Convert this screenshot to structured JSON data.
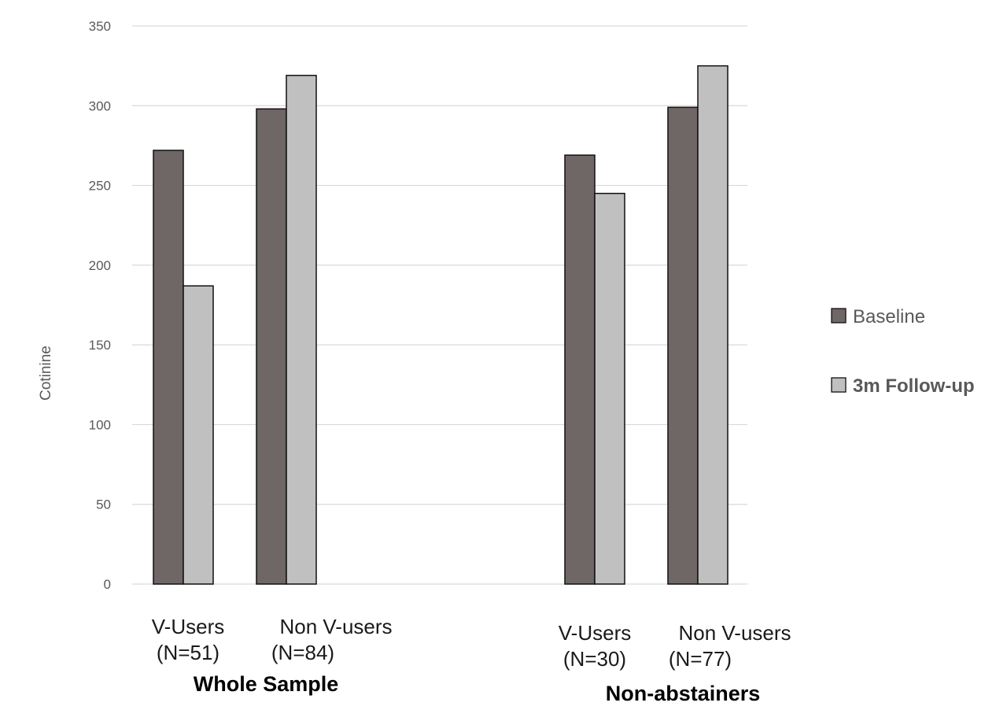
{
  "chart_data": {
    "type": "bar",
    "ylabel": "Cotinine",
    "xlabel": "",
    "ylim": [
      0,
      350
    ],
    "yticks": [
      0,
      50,
      100,
      150,
      200,
      250,
      300,
      350
    ],
    "grid": true,
    "legend_position": "right",
    "categories": [
      {
        "line1": "V-Users",
        "line2": "(N=51)",
        "group": 0
      },
      {
        "line1": "Non V-users",
        "line2": "(N=84)",
        "group": 0
      },
      {
        "line1": "V-Users",
        "line2": "(N=30)",
        "group": 1
      },
      {
        "line1": "Non V-users",
        "line2": "(N=77)",
        "group": 1
      }
    ],
    "groups": [
      "Whole Sample",
      "Non-abstainers"
    ],
    "series": [
      {
        "name": "Baseline",
        "color": "#6f6666",
        "values": [
          272,
          298,
          269,
          299
        ]
      },
      {
        "name": "3m Follow-up",
        "color": "#c0c0c0",
        "values": [
          187,
          319,
          245,
          325
        ]
      }
    ]
  }
}
